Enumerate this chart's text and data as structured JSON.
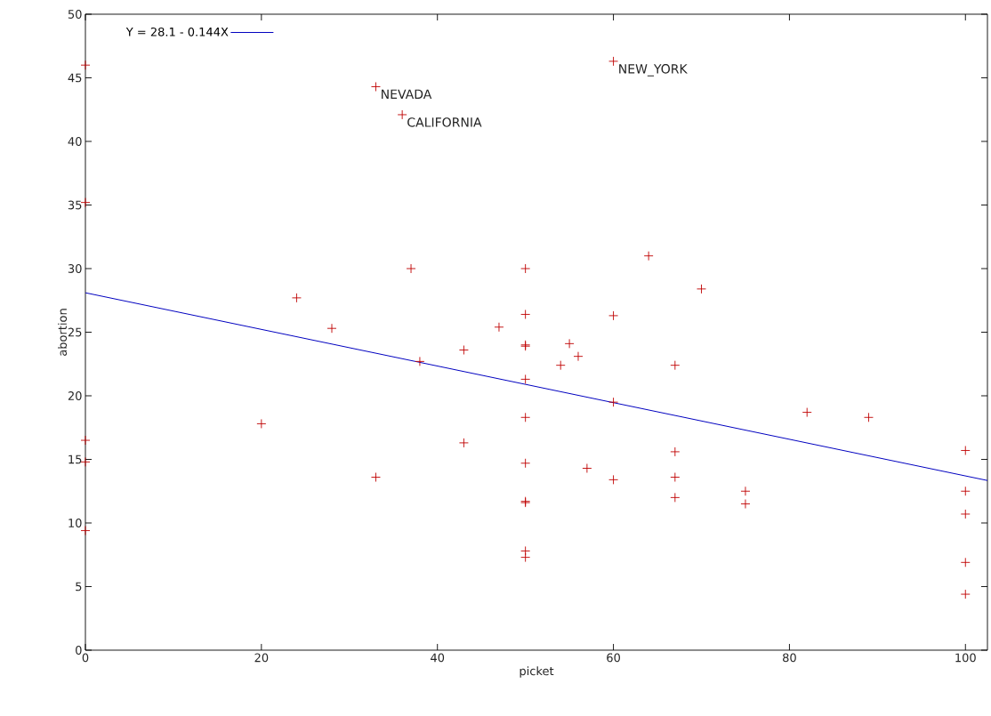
{
  "chart_data": {
    "type": "scatter",
    "xlabel": "picket",
    "ylabel": "abortion",
    "xlim": [
      0,
      102.5
    ],
    "ylim": [
      0,
      50
    ],
    "xticks": [
      0,
      20,
      40,
      60,
      80,
      100
    ],
    "yticks": [
      0,
      5,
      10,
      15,
      20,
      25,
      30,
      35,
      40,
      45,
      50
    ],
    "grid": false,
    "legend": "top left",
    "series": [
      {
        "color": "#c00000",
        "marker": "cross",
        "x": [
          0,
          0,
          0,
          0,
          0,
          33,
          36,
          60,
          37,
          24,
          28,
          38,
          43,
          47,
          20,
          33,
          43,
          50,
          50,
          50,
          50,
          50,
          50,
          50,
          50,
          50,
          50,
          50,
          54,
          55,
          56,
          57,
          60,
          60,
          60,
          64,
          67,
          67,
          67,
          67,
          70,
          75,
          75,
          82,
          89,
          100,
          100,
          100,
          100,
          100
        ],
        "values": [
          46,
          35.2,
          16.5,
          14.8,
          9.4,
          44.3,
          42.1,
          46.3,
          30.0,
          27.7,
          25.3,
          22.7,
          23.6,
          25.4,
          17.8,
          13.6,
          16.3,
          30.0,
          26.4,
          24.0,
          23.9,
          21.3,
          18.3,
          14.7,
          11.7,
          11.6,
          7.8,
          7.3,
          22.4,
          24.1,
          23.1,
          14.3,
          26.3,
          19.5,
          13.4,
          31.0,
          22.4,
          15.6,
          13.6,
          12.0,
          28.4,
          12.5,
          11.5,
          18.7,
          18.3,
          15.7,
          12.5,
          10.7,
          6.9,
          4.4
        ]
      },
      {
        "type": "line",
        "name": "Y = 28.1 - 0.144X",
        "color": "#0000c0",
        "marker": "none",
        "x": [
          0,
          102.5
        ],
        "values": [
          28.1,
          13.34
        ]
      }
    ],
    "annotations": [
      {
        "text": "NEVADA",
        "x": 33,
        "y": 44.3
      },
      {
        "text": "CALIFORNIA",
        "x": 36,
        "y": 42.1
      },
      {
        "text": "NEW_YORK",
        "x": 60,
        "y": 46.3
      }
    ]
  }
}
